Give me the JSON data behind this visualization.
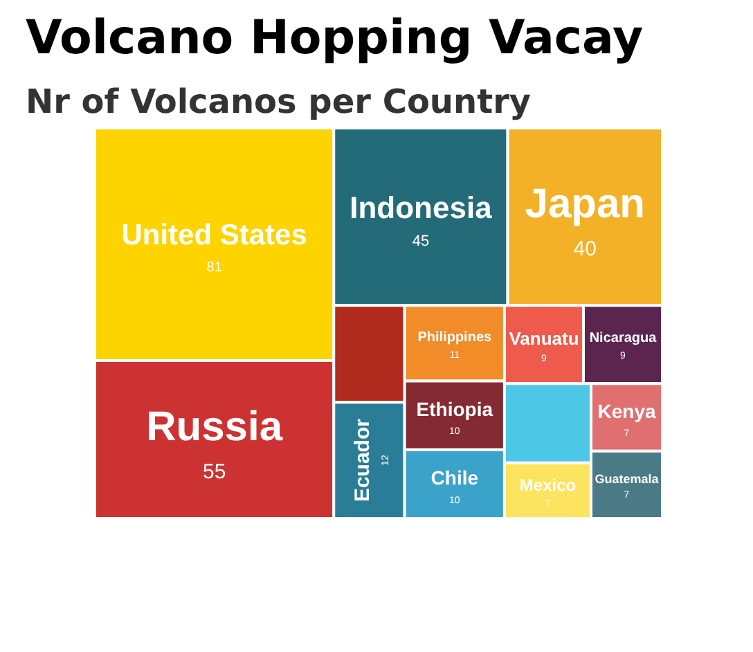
{
  "chart_data": {
    "type": "other",
    "title": "Volcano Hopping Vacay",
    "subtitle": "Nr of Volcanos per Country",
    "categories": [
      "United States",
      "Russia",
      "Indonesia",
      "Japan",
      null,
      "Ecuador",
      "Philippines",
      "Ethiopia",
      "Chile",
      "Vanuatu",
      "Nicaragua",
      null,
      "Mexico",
      "Kenya",
      "Guatemala"
    ],
    "values": [
      81,
      55,
      45,
      40,
      null,
      12,
      11,
      10,
      10,
      9,
      9,
      null,
      7,
      7,
      7
    ],
    "colors": [
      "#fdd400",
      "#cd3232",
      "#236b78",
      "#f2b126",
      "#b02a1e",
      "#2a7d96",
      "#f28c28",
      "#842a32",
      "#3ba3c9",
      "#ee5a4c",
      "#5c2550",
      "#4cc8e6",
      "#fde45e",
      "#e07070",
      "#4a7a86"
    ],
    "data_labels": true
  }
}
